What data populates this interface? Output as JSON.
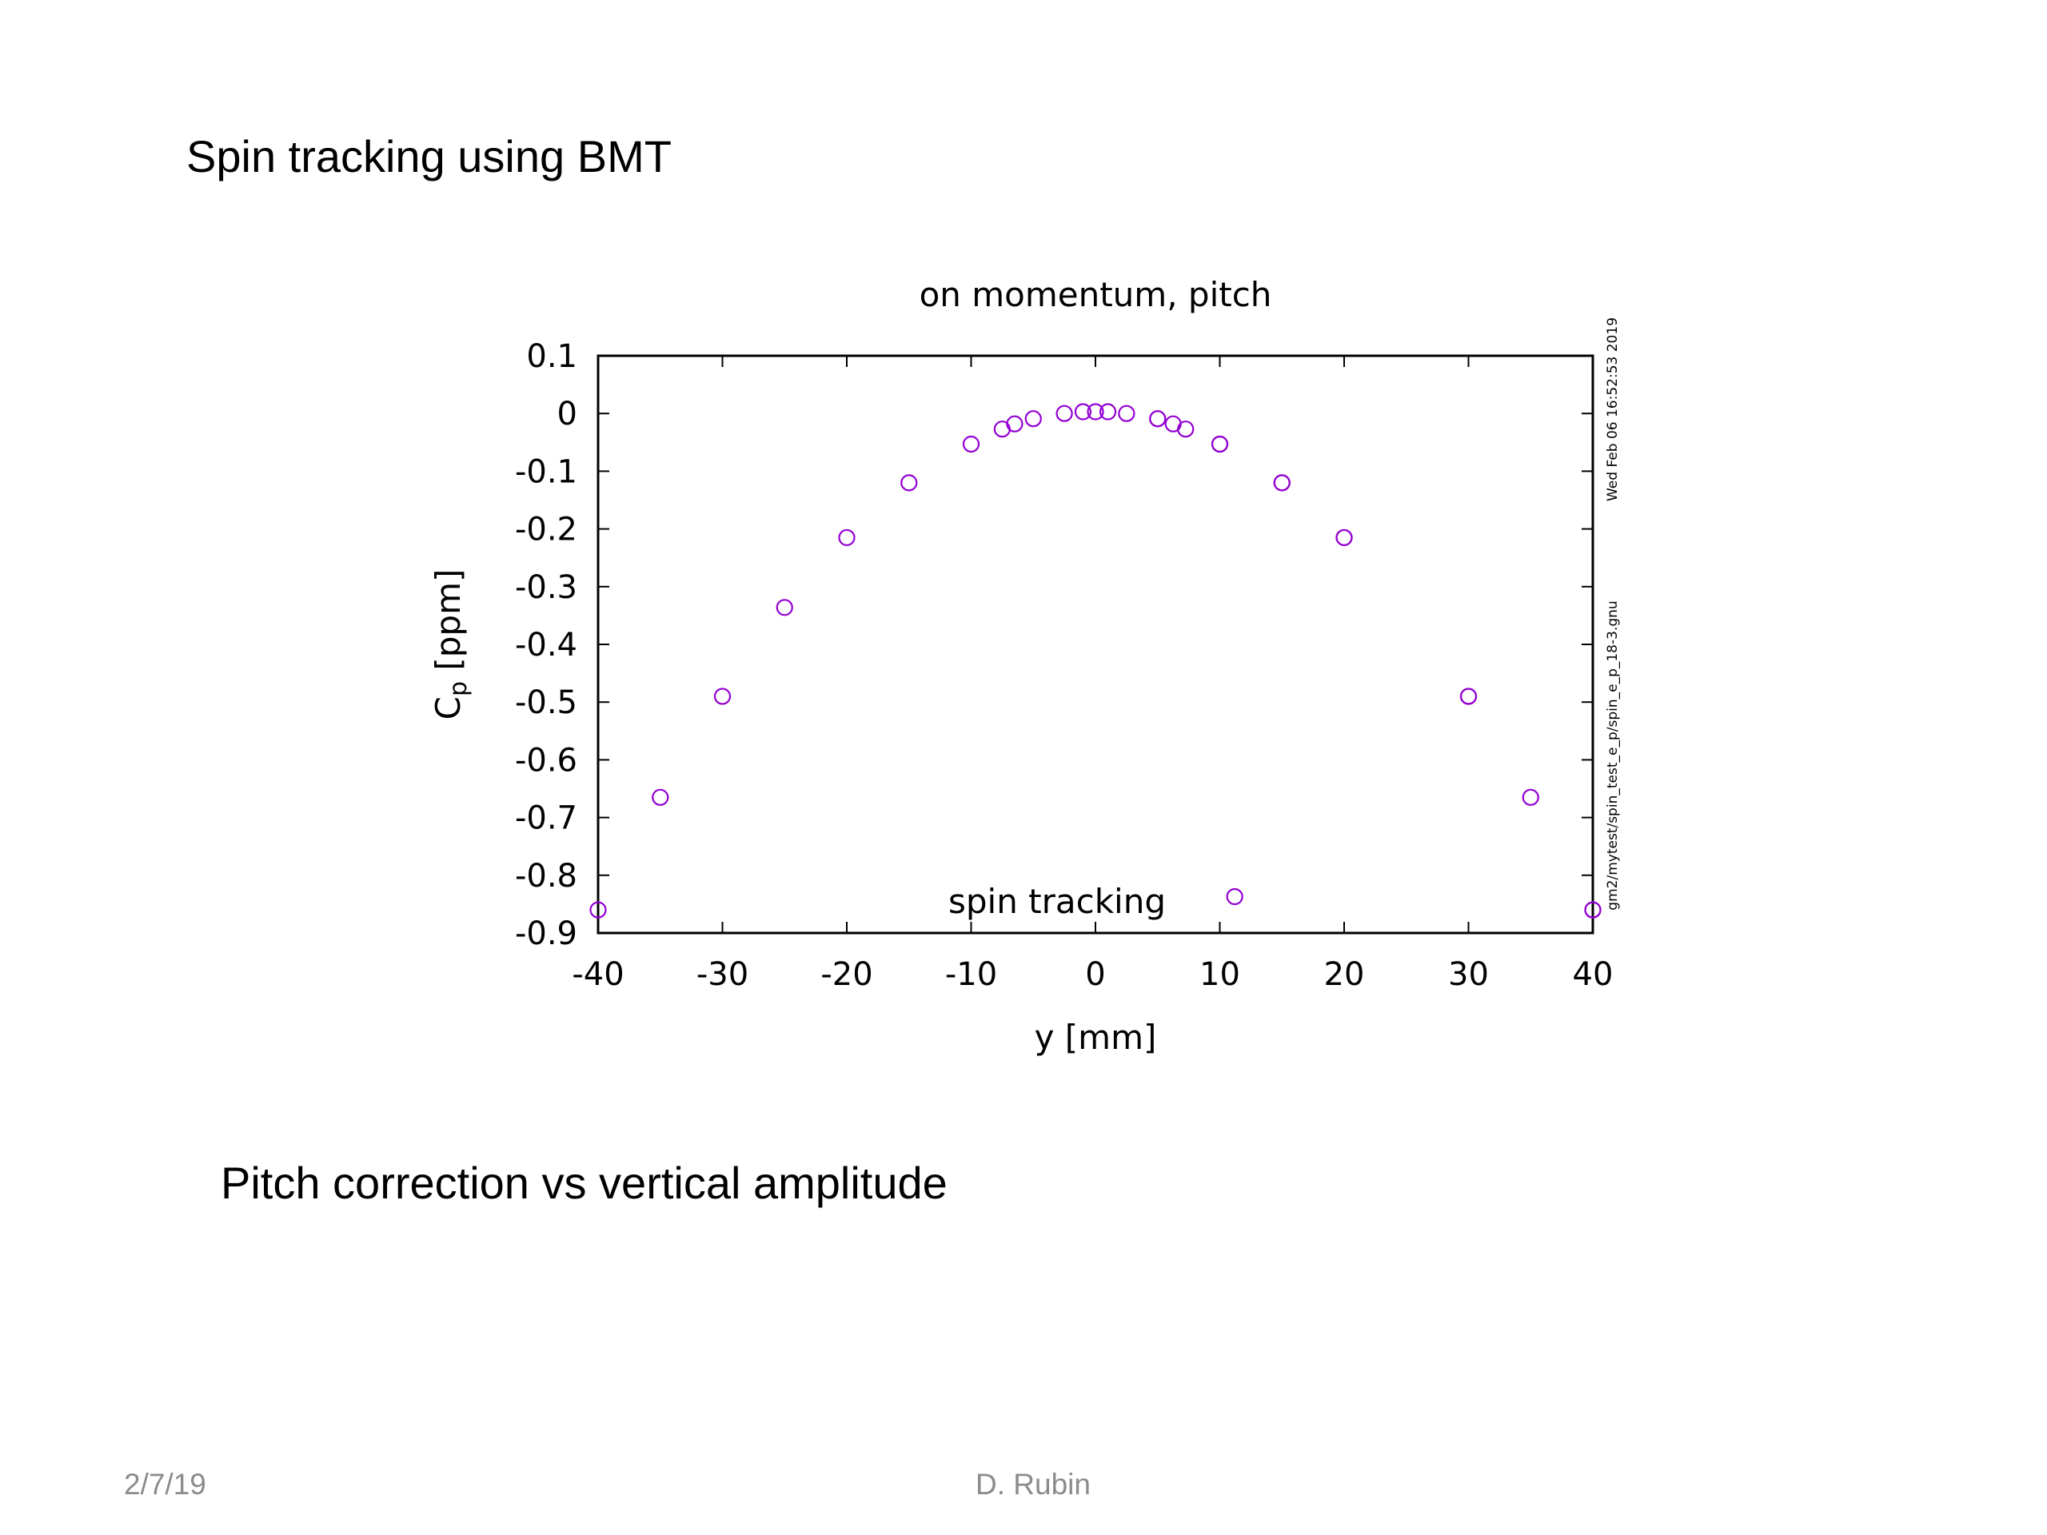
{
  "slide": {
    "title": "Spin tracking using BMT",
    "subtitle": "Pitch correction vs vertical amplitude",
    "footer_date": "2/7/19",
    "footer_author": "D. Rubin"
  },
  "chart_data": {
    "type": "scatter",
    "title": "on momentum, pitch",
    "xlabel": "y [mm]",
    "ylabel_main": "C",
    "ylabel_sub": "p",
    "ylabel_unit": " [ppm]",
    "xlim": [
      -40,
      40
    ],
    "ylim": [
      -0.9,
      0.1
    ],
    "xticks": [
      -40,
      -30,
      -20,
      -10,
      0,
      10,
      20,
      30,
      40
    ],
    "yticks": [
      0.1,
      0,
      -0.1,
      -0.2,
      -0.3,
      -0.4,
      -0.5,
      -0.6,
      -0.7,
      -0.8,
      -0.9
    ],
    "grid": false,
    "legend_position": "bottom-center",
    "marker_color": "#9400D3",
    "side_notes": {
      "timestamp": "Wed Feb 06 16:52:53 2019",
      "script": "gm2/mytest/spin_test_e_p/spin_e_p_18-3.gnu"
    },
    "series": [
      {
        "name": "spin tracking",
        "marker": "open-circle",
        "x": [
          -40,
          -35,
          -30,
          -25,
          -20,
          -15,
          -10,
          -7.5,
          -6.5,
          -5,
          -2.5,
          -1,
          0,
          1,
          2.5,
          5,
          5,
          6.25,
          7.25,
          10,
          10,
          15,
          15,
          20,
          20,
          30,
          30,
          35,
          40,
          40
        ],
        "y": [
          -0.86,
          -0.665,
          -0.49,
          -0.336,
          -0.215,
          -0.12,
          -0.053,
          -0.027,
          -0.018,
          -0.009,
          0.0,
          0.003,
          0.003,
          0.003,
          0.0,
          -0.009,
          -0.009,
          -0.018,
          -0.027,
          -0.053,
          -0.053,
          -0.12,
          -0.12,
          -0.215,
          -0.215,
          -0.49,
          -0.49,
          -0.665,
          -0.86,
          -0.86
        ]
      }
    ],
    "legend_sample": {
      "x": 11.2,
      "y": -0.837
    }
  }
}
